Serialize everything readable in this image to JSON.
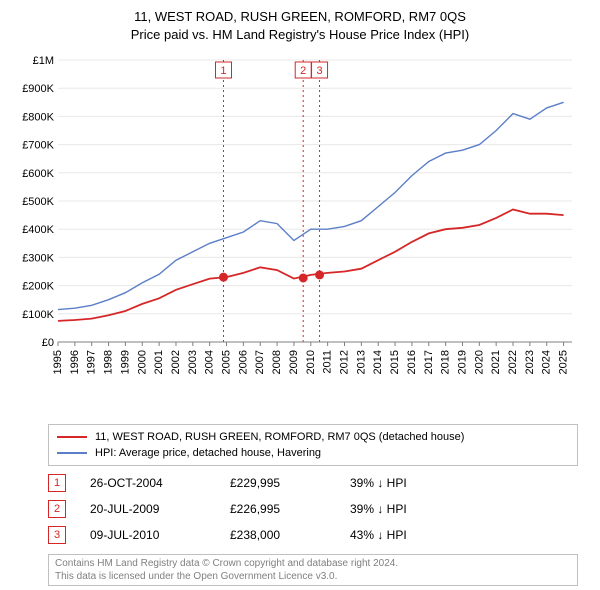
{
  "title": {
    "line1": "11, WEST ROAD, RUSH GREEN, ROMFORD, RM7 0QS",
    "line2": "Price paid vs. HM Land Registry's House Price Index (HPI)"
  },
  "chart": {
    "type": "line",
    "background_color": "#ffffff",
    "grid_color": "#e8e8e8",
    "axis_color": "#808080",
    "x": {
      "min": 1995,
      "max": 2025.5,
      "ticks": [
        1995,
        1996,
        1997,
        1998,
        1999,
        2000,
        2001,
        2002,
        2003,
        2004,
        2005,
        2006,
        2007,
        2008,
        2009,
        2010,
        2011,
        2012,
        2013,
        2014,
        2015,
        2016,
        2017,
        2018,
        2019,
        2020,
        2021,
        2022,
        2023,
        2024,
        2025
      ],
      "tick_labels": [
        "1995",
        "1996",
        "1997",
        "1998",
        "1999",
        "2000",
        "2001",
        "2002",
        "2003",
        "2004",
        "2005",
        "2006",
        "2007",
        "2008",
        "2009",
        "2010",
        "2011",
        "2012",
        "2013",
        "2014",
        "2015",
        "2016",
        "2017",
        "2018",
        "2019",
        "2020",
        "2021",
        "2022",
        "2023",
        "2024",
        "2025"
      ],
      "label_fontsize": 11,
      "label_rotation": -90
    },
    "y": {
      "min": 0,
      "max": 1000000,
      "ticks": [
        0,
        100000,
        200000,
        300000,
        400000,
        500000,
        600000,
        700000,
        800000,
        900000,
        1000000
      ],
      "tick_labels": [
        "£0",
        "£100K",
        "£200K",
        "£300K",
        "£400K",
        "£500K",
        "£600K",
        "£700K",
        "£800K",
        "£900K",
        "£1M"
      ],
      "label_fontsize": 11
    },
    "series": [
      {
        "id": "hpi",
        "label": "HPI: Average price, detached house, Havering",
        "color": "#5b7fc7",
        "line_width": 1.4,
        "x": [
          1995,
          1996,
          1997,
          1998,
          1999,
          2000,
          2001,
          2002,
          2003,
          2004,
          2005,
          2006,
          2007,
          2008,
          2009,
          2010,
          2011,
          2012,
          2013,
          2014,
          2015,
          2016,
          2017,
          2018,
          2019,
          2020,
          2021,
          2022,
          2023,
          2024,
          2025
        ],
        "y": [
          115000,
          120000,
          130000,
          150000,
          175000,
          210000,
          240000,
          290000,
          320000,
          350000,
          370000,
          390000,
          430000,
          420000,
          360000,
          400000,
          400000,
          410000,
          430000,
          480000,
          530000,
          590000,
          640000,
          670000,
          680000,
          700000,
          750000,
          810000,
          790000,
          830000,
          850000
        ]
      },
      {
        "id": "property",
        "label": "11, WEST ROAD, RUSH GREEN, ROMFORD, RM7 0QS (detached house)",
        "color": "#d62728",
        "line_width": 1.8,
        "x": [
          1995,
          1996,
          1997,
          1998,
          1999,
          2000,
          2001,
          2002,
          2003,
          2004,
          2005,
          2006,
          2007,
          2008,
          2009,
          2010,
          2011,
          2012,
          2013,
          2014,
          2015,
          2016,
          2017,
          2018,
          2019,
          2020,
          2021,
          2022,
          2023,
          2024,
          2025
        ],
        "y": [
          75000,
          78000,
          83000,
          95000,
          110000,
          135000,
          155000,
          185000,
          205000,
          225000,
          230000,
          245000,
          265000,
          255000,
          225000,
          238000,
          245000,
          250000,
          260000,
          290000,
          320000,
          355000,
          385000,
          400000,
          405000,
          415000,
          440000,
          470000,
          455000,
          455000,
          450000
        ]
      }
    ],
    "markers": [
      {
        "x": 2004.82,
        "y": 229995,
        "color": "#d62728",
        "fill": "#d62728",
        "r": 4
      },
      {
        "x": 2009.55,
        "y": 226995,
        "color": "#d62728",
        "fill": "#d62728",
        "r": 4
      },
      {
        "x": 2010.52,
        "y": 238000,
        "color": "#d62728",
        "fill": "#d62728",
        "r": 4
      }
    ],
    "event_lines": [
      {
        "n": "1",
        "x": 2004.82,
        "color": "#d62728"
      },
      {
        "n": "2",
        "x": 2009.55,
        "color": "#d62728"
      },
      {
        "n": "3",
        "x": 2010.52,
        "color": "#d62728"
      }
    ]
  },
  "legend": {
    "items": [
      {
        "color": "#d62728",
        "label": "11, WEST ROAD, RUSH GREEN, ROMFORD, RM7 0QS (detached house)"
      },
      {
        "color": "#5b7fc7",
        "label": "HPI: Average price, detached house, Havering"
      }
    ]
  },
  "events": [
    {
      "n": "1",
      "color": "#d62728",
      "date": "26-OCT-2004",
      "price": "£229,995",
      "delta": "39% ↓ HPI"
    },
    {
      "n": "2",
      "color": "#d62728",
      "date": "20-JUL-2009",
      "price": "£226,995",
      "delta": "39% ↓ HPI"
    },
    {
      "n": "3",
      "color": "#d62728",
      "date": "09-JUL-2010",
      "price": "£238,000",
      "delta": "43% ↓ HPI"
    }
  ],
  "footnote": {
    "line1": "Contains HM Land Registry data © Crown copyright and database right 2024.",
    "line2": "This data is licensed under the Open Government Licence v3.0."
  }
}
